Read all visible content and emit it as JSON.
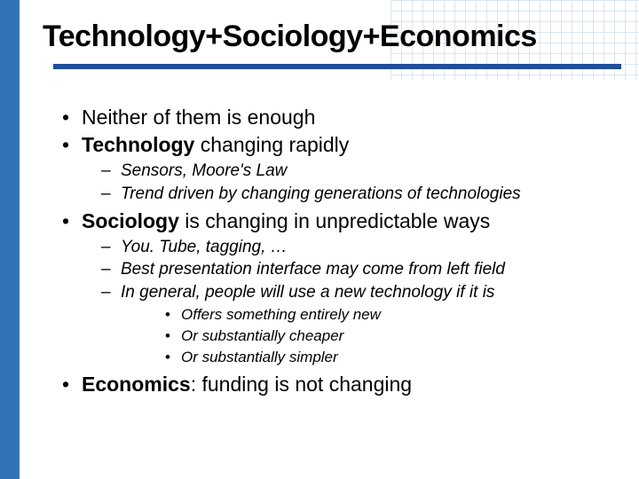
{
  "colors": {
    "sidebar": "#3273b8",
    "rule": "#1f4e9b",
    "grid": "#9bb9d9",
    "text": "#000000",
    "background": "#ffffff"
  },
  "title": "Technology+Sociology+Economics",
  "bullets": {
    "b1": "Neither of them is enough",
    "b2_bold": "Technology",
    "b2_rest": " changing rapidly",
    "b2_sub1": "Sensors, Moore's Law",
    "b2_sub2": "Trend driven by changing generations of technologies",
    "b3_bold": "Sociology",
    "b3_rest": " is changing in unpredictable ways",
    "b3_sub1": "You. Tube, tagging, …",
    "b3_sub2": "Best presentation interface may come from left field",
    "b3_sub3": "In general, people will use a new technology if it is",
    "b3_sub3_a": "Offers something entirely new",
    "b3_sub3_b": "Or substantially cheaper",
    "b3_sub3_c": "Or substantially simpler",
    "b4_bold": "Economics",
    "b4_rest": ": funding is not changing"
  }
}
